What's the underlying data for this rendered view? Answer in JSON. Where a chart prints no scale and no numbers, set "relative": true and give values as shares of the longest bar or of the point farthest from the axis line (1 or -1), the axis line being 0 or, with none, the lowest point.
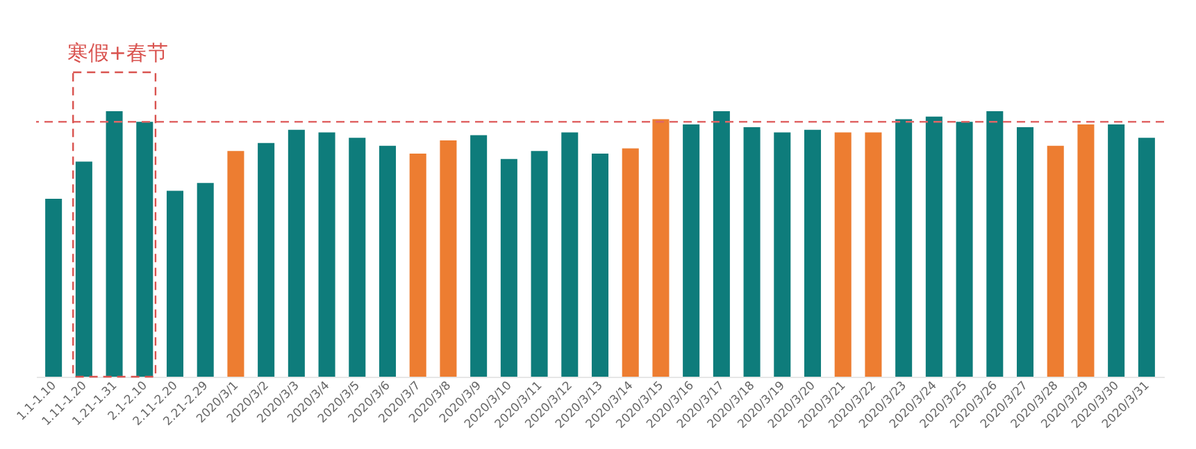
{
  "chart_data": {
    "type": "bar",
    "relative": true,
    "categories": [
      "1.1-1.10",
      "1.11-1.20",
      "1.21-1.31",
      "2.1-2.10",
      "2.11-2.20",
      "2.21-2.29",
      "2020/3/1",
      "2020/3/2",
      "2020/3/3",
      "2020/3/4",
      "2020/3/5",
      "2020/3/6",
      "2020/3/7",
      "2020/3/8",
      "2020/3/9",
      "2020/3/10",
      "2020/3/11",
      "2020/3/12",
      "2020/3/13",
      "2020/3/14",
      "2020/3/15",
      "2020/3/16",
      "2020/3/17",
      "2020/3/18",
      "2020/3/19",
      "2020/3/20",
      "2020/3/21",
      "2020/3/22",
      "2020/3/23",
      "2020/3/24",
      "2020/3/25",
      "2020/3/26",
      "2020/3/27",
      "2020/3/28",
      "2020/3/29",
      "2020/3/30",
      "2020/3/31"
    ],
    "values": [
      0.67,
      0.81,
      1.0,
      0.96,
      0.7,
      0.73,
      0.85,
      0.88,
      0.93,
      0.92,
      0.9,
      0.87,
      0.84,
      0.89,
      0.91,
      0.82,
      0.85,
      0.92,
      0.84,
      0.86,
      0.97,
      0.95,
      1.0,
      0.94,
      0.92,
      0.93,
      0.92,
      0.92,
      0.97,
      0.98,
      0.96,
      1.0,
      0.94,
      0.87,
      0.95,
      0.95,
      0.9
    ],
    "colors": [
      "#0e7c7b",
      "#0e7c7b",
      "#0e7c7b",
      "#0e7c7b",
      "#0e7c7b",
      "#0e7c7b",
      "#ed7d31",
      "#0e7c7b",
      "#0e7c7b",
      "#0e7c7b",
      "#0e7c7b",
      "#0e7c7b",
      "#ed7d31",
      "#ed7d31",
      "#0e7c7b",
      "#0e7c7b",
      "#0e7c7b",
      "#0e7c7b",
      "#0e7c7b",
      "#ed7d31",
      "#ed7d31",
      "#0e7c7b",
      "#0e7c7b",
      "#0e7c7b",
      "#0e7c7b",
      "#0e7c7b",
      "#ed7d31",
      "#ed7d31",
      "#0e7c7b",
      "#0e7c7b",
      "#0e7c7b",
      "#0e7c7b",
      "#0e7c7b",
      "#ed7d31",
      "#ed7d31",
      "#0e7c7b",
      "#0e7c7b"
    ],
    "ref_lines": [
      {
        "axis": "y",
        "value": 0.96,
        "color": "#e06666",
        "line_style": "dashed"
      }
    ],
    "annotations": [
      "寒假+春节"
    ],
    "grid": false
  }
}
